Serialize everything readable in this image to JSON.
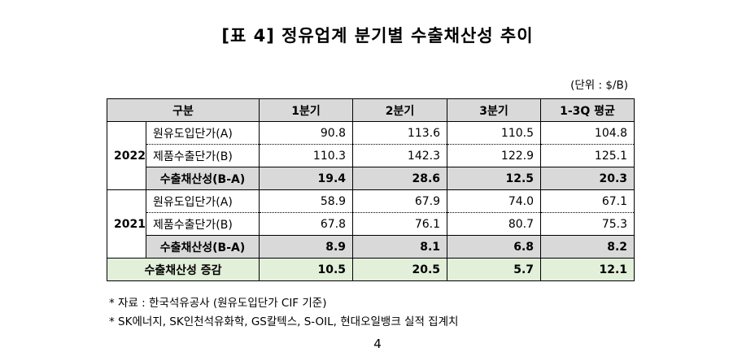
{
  "title": "[표 4] 정유업계 분기별 수출채산성 추이",
  "unit": "(단위 : $/B)",
  "table": {
    "headers": [
      "구분",
      "1분기",
      "2분기",
      "3분기",
      "1-3Q 평균"
    ],
    "groups": [
      {
        "year": "2022",
        "rows": [
          {
            "label": "원유도입단가(A)",
            "values": [
              "90.8",
              "113.6",
              "110.5",
              "104.8"
            ]
          },
          {
            "label": "제품수출단가(B)",
            "values": [
              "110.3",
              "142.3",
              "122.9",
              "125.1"
            ]
          },
          {
            "label": "수출채산성(B-A)",
            "values": [
              "19.4",
              "28.6",
              "12.5",
              "20.3"
            ]
          }
        ]
      },
      {
        "year": "2021",
        "rows": [
          {
            "label": "원유도입단가(A)",
            "values": [
              "58.9",
              "67.9",
              "74.0",
              "67.1"
            ]
          },
          {
            "label": "제품수출단가(B)",
            "values": [
              "67.8",
              "76.1",
              "80.7",
              "75.3"
            ]
          },
          {
            "label": "수출채산성(B-A)",
            "values": [
              "8.9",
              "8.1",
              "6.8",
              "8.2"
            ]
          }
        ]
      }
    ],
    "total": {
      "label": "수출채산성 증감",
      "values": [
        "10.5",
        "20.5",
        "5.7",
        "12.1"
      ]
    }
  },
  "notes": [
    "* 자료 : 한국석유공사 (원유도입단가 CIF 기준)",
    "* SK에너지, SK인천석유화학, GS칼텍스, S-OIL, 현대오일뱅크 실적 집계치"
  ],
  "page_number": "4"
}
